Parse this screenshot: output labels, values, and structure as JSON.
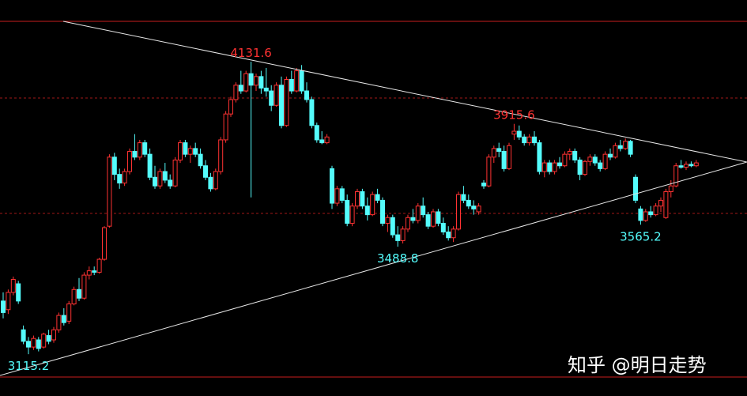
{
  "chart_data": {
    "type": "candlestick",
    "up_color": "#ff3232",
    "down_color": "#54fcfc",
    "ylim": [
      2970,
      4346
    ],
    "annotations": [
      {
        "value": 4131.6,
        "label": "4131.6"
      },
      {
        "value": 3115.2,
        "label": "3115.2"
      },
      {
        "value": 3915.6,
        "label": "3915.6"
      },
      {
        "value": 3488.8,
        "label": "3488.8"
      },
      {
        "value": 3565.2,
        "label": "3565.2"
      }
    ],
    "watermark": "知乎 @明日走势",
    "candles": [
      [
        3300,
        3330,
        3240,
        3260
      ],
      [
        3270,
        3340,
        3255,
        3330
      ],
      [
        3330,
        3385,
        3320,
        3375
      ],
      [
        3360,
        3370,
        3290,
        3300
      ],
      [
        3200,
        3215,
        3150,
        3160
      ],
      [
        3160,
        3175,
        3115.2,
        3140
      ],
      [
        3140,
        3180,
        3130,
        3170
      ],
      [
        3165,
        3175,
        3125,
        3135
      ],
      [
        3140,
        3190,
        3135,
        3185
      ],
      [
        3180,
        3200,
        3150,
        3160
      ],
      [
        3165,
        3210,
        3155,
        3200
      ],
      [
        3200,
        3260,
        3190,
        3250
      ],
      [
        3250,
        3275,
        3215,
        3225
      ],
      [
        3230,
        3300,
        3220,
        3290
      ],
      [
        3290,
        3350,
        3285,
        3340
      ],
      [
        3340,
        3380,
        3300,
        3310
      ],
      [
        3310,
        3400,
        3305,
        3390
      ],
      [
        3390,
        3420,
        3375,
        3405
      ],
      [
        3405,
        3420,
        3390,
        3400
      ],
      [
        3400,
        3450,
        3395,
        3445
      ],
      [
        3445,
        3560,
        3440,
        3555
      ],
      [
        3560,
        3810,
        3555,
        3800
      ],
      [
        3800,
        3815,
        3720,
        3740
      ],
      [
        3740,
        3760,
        3690,
        3710
      ],
      [
        3710,
        3760,
        3700,
        3750
      ],
      [
        3750,
        3830,
        3740,
        3820
      ],
      [
        3820,
        3880,
        3790,
        3800
      ],
      [
        3800,
        3860,
        3790,
        3850
      ],
      [
        3850,
        3860,
        3800,
        3810
      ],
      [
        3810,
        3830,
        3720,
        3730
      ],
      [
        3730,
        3770,
        3690,
        3700
      ],
      [
        3700,
        3760,
        3690,
        3750
      ],
      [
        3750,
        3780,
        3710,
        3720
      ],
      [
        3720,
        3740,
        3690,
        3700
      ],
      [
        3700,
        3800,
        3695,
        3790
      ],
      [
        3790,
        3860,
        3780,
        3850
      ],
      [
        3850,
        3860,
        3800,
        3810
      ],
      [
        3810,
        3840,
        3780,
        3830
      ],
      [
        3830,
        3850,
        3800,
        3810
      ],
      [
        3810,
        3830,
        3760,
        3770
      ],
      [
        3770,
        3790,
        3720,
        3730
      ],
      [
        3730,
        3745,
        3680,
        3690
      ],
      [
        3690,
        3760,
        3685,
        3750
      ],
      [
        3750,
        3870,
        3740,
        3860
      ],
      [
        3860,
        3960,
        3850,
        3950
      ],
      [
        3950,
        4010,
        3940,
        4000
      ],
      [
        4000,
        4060,
        3990,
        4050
      ],
      [
        4050,
        4100,
        4020,
        4030
      ],
      [
        4030,
        4100,
        4025,
        4090
      ],
      [
        4090,
        4131.6,
        3660,
        4050
      ],
      [
        4050,
        4090,
        4030,
        4080
      ],
      [
        4080,
        4100,
        4020,
        4040
      ],
      [
        4040,
        4110,
        4010,
        4030
      ],
      [
        4030,
        4050,
        3960,
        3980
      ],
      [
        3980,
        4060,
        3975,
        4050
      ],
      [
        4050,
        4080,
        3900,
        3910
      ],
      [
        3910,
        4080,
        3905,
        4070
      ],
      [
        4070,
        4100,
        4020,
        4030
      ],
      [
        4030,
        4110,
        4025,
        4100
      ],
      [
        4100,
        4120,
        4020,
        4030
      ],
      [
        4030,
        4060,
        3990,
        4000
      ],
      [
        4000,
        4010,
        3900,
        3910
      ],
      [
        3910,
        3920,
        3850,
        3860
      ],
      [
        3860,
        3890,
        3845,
        3850
      ],
      [
        3850,
        3880,
        3845,
        3870
      ],
      [
        3760,
        3770,
        3620,
        3640
      ],
      [
        3640,
        3700,
        3630,
        3690
      ],
      [
        3690,
        3700,
        3640,
        3650
      ],
      [
        3650,
        3670,
        3560,
        3570
      ],
      [
        3570,
        3640,
        3560,
        3630
      ],
      [
        3630,
        3690,
        3620,
        3680
      ],
      [
        3680,
        3690,
        3620,
        3630
      ],
      [
        3630,
        3660,
        3580,
        3600
      ],
      [
        3600,
        3680,
        3595,
        3670
      ],
      [
        3670,
        3690,
        3640,
        3650
      ],
      [
        3650,
        3660,
        3560,
        3570
      ],
      [
        3570,
        3600,
        3540,
        3590
      ],
      [
        3590,
        3600,
        3520,
        3530
      ],
      [
        3530,
        3560,
        3488.8,
        3510
      ],
      [
        3510,
        3560,
        3500,
        3550
      ],
      [
        3550,
        3600,
        3540,
        3590
      ],
      [
        3590,
        3620,
        3570,
        3580
      ],
      [
        3580,
        3640,
        3570,
        3630
      ],
      [
        3630,
        3660,
        3590,
        3600
      ],
      [
        3600,
        3610,
        3550,
        3560
      ],
      [
        3560,
        3620,
        3555,
        3610
      ],
      [
        3610,
        3620,
        3560,
        3570
      ],
      [
        3570,
        3590,
        3530,
        3540
      ],
      [
        3540,
        3560,
        3510,
        3520
      ],
      [
        3520,
        3560,
        3505,
        3550
      ],
      [
        3550,
        3680,
        3545,
        3670
      ],
      [
        3670,
        3700,
        3640,
        3650
      ],
      [
        3650,
        3670,
        3620,
        3630
      ],
      [
        3630,
        3650,
        3600,
        3620
      ],
      [
        3610,
        3640,
        3600,
        3630
      ],
      [
        3710,
        3720,
        3690,
        3700
      ],
      [
        3700,
        3810,
        3695,
        3800
      ],
      [
        3800,
        3840,
        3780,
        3830
      ],
      [
        3830,
        3850,
        3800,
        3820
      ],
      [
        3820,
        3840,
        3750,
        3760
      ],
      [
        3760,
        3850,
        3755,
        3840
      ],
      [
        3880,
        3915.6,
        3860,
        3890
      ],
      [
        3890,
        3910,
        3860,
        3870
      ],
      [
        3870,
        3880,
        3840,
        3850
      ],
      [
        3850,
        3880,
        3840,
        3870
      ],
      [
        3870,
        3890,
        3840,
        3850
      ],
      [
        3850,
        3860,
        3740,
        3750
      ],
      [
        3750,
        3790,
        3730,
        3780
      ],
      [
        3780,
        3790,
        3740,
        3750
      ],
      [
        3750,
        3790,
        3740,
        3780
      ],
      [
        3780,
        3800,
        3760,
        3770
      ],
      [
        3770,
        3820,
        3765,
        3810
      ],
      [
        3810,
        3830,
        3790,
        3820
      ],
      [
        3820,
        3830,
        3780,
        3790
      ],
      [
        3790,
        3800,
        3720,
        3740
      ],
      [
        3740,
        3790,
        3735,
        3785
      ],
      [
        3785,
        3810,
        3770,
        3800
      ],
      [
        3800,
        3810,
        3770,
        3780
      ],
      [
        3780,
        3790,
        3750,
        3760
      ],
      [
        3760,
        3820,
        3755,
        3810
      ],
      [
        3810,
        3830,
        3790,
        3800
      ],
      [
        3800,
        3850,
        3795,
        3840
      ],
      [
        3840,
        3860,
        3820,
        3830
      ],
      [
        3830,
        3865,
        3825,
        3855
      ],
      [
        3855,
        3860,
        3800,
        3810
      ],
      [
        3730,
        3740,
        3640,
        3650
      ],
      [
        3620,
        3630,
        3565.2,
        3580
      ],
      [
        3580,
        3620,
        3575,
        3610
      ],
      [
        3610,
        3630,
        3590,
        3600
      ],
      [
        3600,
        3640,
        3595,
        3630
      ],
      [
        3630,
        3660,
        3610,
        3650
      ],
      [
        3590,
        3690,
        3585,
        3680
      ],
      [
        3680,
        3720,
        3660,
        3700
      ],
      [
        3700,
        3780,
        3695,
        3770
      ],
      [
        3770,
        3790,
        3760,
        3765
      ],
      [
        3765,
        3785,
        3755,
        3775
      ],
      [
        3775,
        3785,
        3765,
        3770
      ],
      [
        3770,
        3790,
        3765,
        3780
      ]
    ]
  }
}
